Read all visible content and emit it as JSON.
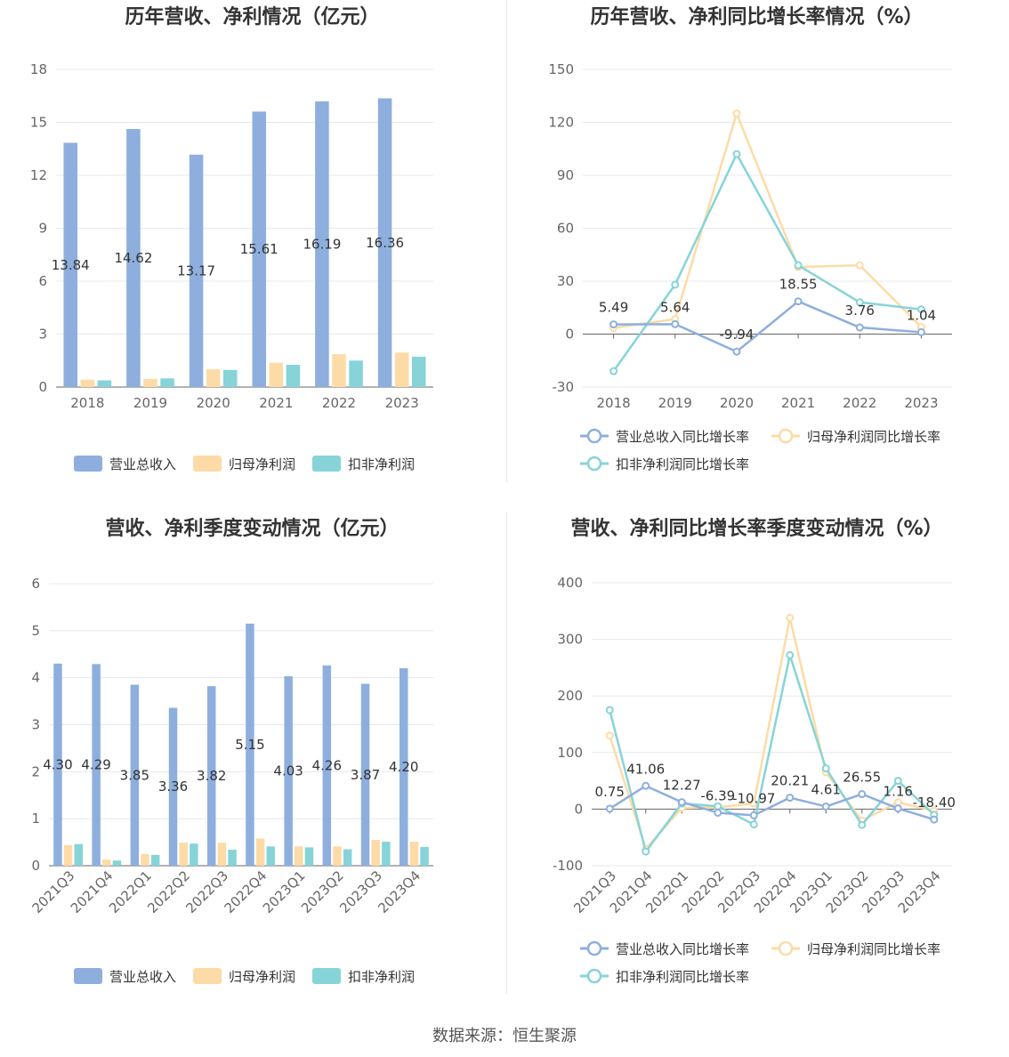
{
  "footer": "数据来源：恒生聚源",
  "colors": {
    "revenue": "#8eafdd",
    "net_profit": "#fddba6",
    "deducted_profit": "#86d4d8",
    "grid": "#e6e8ef",
    "axis": "#999999"
  },
  "chart_data": [
    {
      "type": "bar",
      "title": "历年营收、净利情况（亿元）",
      "categories": [
        "2018",
        "2019",
        "2020",
        "2021",
        "2022",
        "2023"
      ],
      "ylim": [
        0,
        18
      ],
      "yticks": [
        0,
        3,
        6,
        9,
        12,
        15,
        18
      ],
      "series": [
        {
          "name": "营业总收入",
          "values": [
            13.84,
            14.62,
            13.17,
            15.61,
            16.19,
            16.36
          ],
          "labels": [
            "13.84",
            "14.62",
            "13.17",
            "15.61",
            "16.19",
            "16.36"
          ]
        },
        {
          "name": "归母净利润",
          "values": [
            0.42,
            0.46,
            1.01,
            1.38,
            1.86,
            1.95
          ]
        },
        {
          "name": "扣非净利润",
          "values": [
            0.38,
            0.49,
            0.97,
            1.26,
            1.5,
            1.72
          ]
        }
      ],
      "legend": "bottom"
    },
    {
      "type": "line",
      "title": "历年营收、净利同比增长率情况（%）",
      "categories": [
        "2018",
        "2019",
        "2020",
        "2021",
        "2022",
        "2023"
      ],
      "ylim": [
        -30,
        150
      ],
      "yticks": [
        -30,
        0,
        30,
        60,
        90,
        120,
        150
      ],
      "series": [
        {
          "name": "营业总收入同比增长率",
          "values": [
            5.49,
            5.64,
            -9.94,
            18.55,
            3.76,
            1.04
          ],
          "labels": [
            "5.49",
            "5.64",
            "-9.94",
            "18.55",
            "3.76",
            "1.04"
          ]
        },
        {
          "name": "归母净利润同比增长率",
          "values": [
            3.5,
            8.5,
            125,
            38,
            39,
            4
          ]
        },
        {
          "name": "扣非净利润同比增长率",
          "values": [
            -21,
            28,
            102,
            39,
            18,
            14
          ]
        }
      ],
      "legend": "bottom"
    },
    {
      "type": "bar",
      "title": "营收、净利季度变动情况（亿元）",
      "categories": [
        "2021Q3",
        "2021Q4",
        "2022Q1",
        "2022Q2",
        "2022Q3",
        "2022Q4",
        "2023Q1",
        "2023Q2",
        "2023Q3",
        "2023Q4"
      ],
      "ylim": [
        0,
        6
      ],
      "yticks": [
        0,
        1,
        2,
        3,
        4,
        5,
        6
      ],
      "series": [
        {
          "name": "营业总收入",
          "values": [
            4.3,
            4.29,
            3.85,
            3.36,
            3.82,
            5.15,
            4.03,
            4.26,
            3.87,
            4.2
          ],
          "labels": [
            "4.30",
            "4.29",
            "3.85",
            "3.36",
            "3.82",
            "5.15",
            "4.03",
            "4.26",
            "3.87",
            "4.20"
          ]
        },
        {
          "name": "归母净利润",
          "values": [
            0.44,
            0.13,
            0.25,
            0.49,
            0.49,
            0.58,
            0.41,
            0.41,
            0.55,
            0.51
          ]
        },
        {
          "name": "扣非净利润",
          "values": [
            0.46,
            0.11,
            0.23,
            0.47,
            0.34,
            0.41,
            0.39,
            0.35,
            0.51,
            0.4
          ]
        }
      ],
      "legend": "bottom"
    },
    {
      "type": "line",
      "title": "营收、净利同比增长率季度变动情况（%）",
      "categories": [
        "2021Q3",
        "2021Q4",
        "2022Q1",
        "2022Q2",
        "2022Q3",
        "2022Q4",
        "2023Q1",
        "2023Q2",
        "2023Q3",
        "2023Q4"
      ],
      "ylim": [
        -100,
        400
      ],
      "yticks": [
        -100,
        0,
        100,
        200,
        300,
        400
      ],
      "series": [
        {
          "name": "营业总收入同比增长率",
          "values": [
            0.75,
            41.06,
            12.27,
            -6.39,
            -10.97,
            20.21,
            4.61,
            26.55,
            1.16,
            -18.4
          ],
          "labels": [
            "0.75",
            "41.06",
            "12.27",
            "-6.39",
            "-10.97",
            "20.21",
            "4.61",
            "26.55",
            "1.16",
            "-18.40"
          ]
        },
        {
          "name": "归母净利润同比增长率",
          "values": [
            130,
            -70,
            2,
            3,
            10,
            338,
            65,
            -20,
            12,
            -3
          ]
        },
        {
          "name": "扣非净利润同比增长率",
          "values": [
            175,
            -75,
            10,
            5,
            -27,
            272,
            72,
            -28,
            50,
            -10
          ]
        }
      ],
      "legend": "bottom"
    }
  ]
}
